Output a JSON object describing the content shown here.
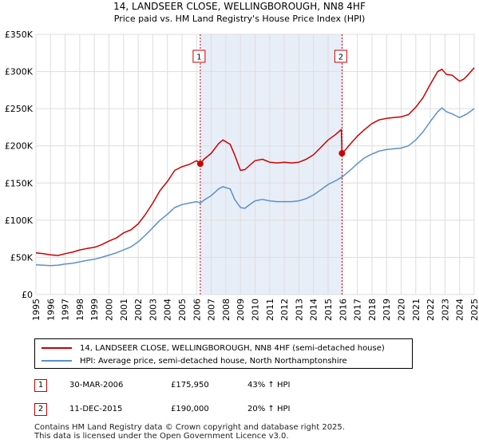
{
  "chart_data": {
    "type": "line",
    "title": "14, LANDSEER CLOSE, WELLINGBOROUGH, NN8 4HF",
    "subtitle": "Price paid vs. HM Land Registry's House Price Index (HPI)",
    "xlabel": "",
    "ylabel": "",
    "xlim": [
      1995,
      2025
    ],
    "ylim": [
      0,
      350000
    ],
    "grid": true,
    "y_ticks": [
      {
        "value": 0,
        "label": "£0"
      },
      {
        "value": 50000,
        "label": "£50K"
      },
      {
        "value": 100000,
        "label": "£100K"
      },
      {
        "value": 150000,
        "label": "£150K"
      },
      {
        "value": 200000,
        "label": "£200K"
      },
      {
        "value": 250000,
        "label": "£250K"
      },
      {
        "value": 300000,
        "label": "£300K"
      },
      {
        "value": 350000,
        "label": "£350K"
      }
    ],
    "x_ticks": [
      "1995",
      "1996",
      "1997",
      "1998",
      "1999",
      "2000",
      "2001",
      "2002",
      "2003",
      "2004",
      "2005",
      "2006",
      "2007",
      "2008",
      "2009",
      "2010",
      "2011",
      "2012",
      "2013",
      "2014",
      "2015",
      "2016",
      "2017",
      "2018",
      "2019",
      "2020",
      "2021",
      "2022",
      "2023",
      "2024",
      "2025"
    ],
    "shaded_region": {
      "from": 2006.25,
      "to": 2015.95
    },
    "series": [
      {
        "name": "14, LANDSEER CLOSE, WELLINGBOROUGH, NN8 4HF (semi-detached house)",
        "color": "#cc0000",
        "points": [
          [
            1995.0,
            56000
          ],
          [
            1995.5,
            55000
          ],
          [
            1996.0,
            53500
          ],
          [
            1996.5,
            52500
          ],
          [
            1997.0,
            55000
          ],
          [
            1997.5,
            57000
          ],
          [
            1998.0,
            60000
          ],
          [
            1998.5,
            62000
          ],
          [
            1999.0,
            63500
          ],
          [
            1999.5,
            67000
          ],
          [
            2000.0,
            72000
          ],
          [
            2000.5,
            76000
          ],
          [
            2001.0,
            83000
          ],
          [
            2001.5,
            87000
          ],
          [
            2002.0,
            95000
          ],
          [
            2002.5,
            108000
          ],
          [
            2003.0,
            123000
          ],
          [
            2003.5,
            140000
          ],
          [
            2004.0,
            152000
          ],
          [
            2004.5,
            167000
          ],
          [
            2005.0,
            172000
          ],
          [
            2005.5,
            175000
          ],
          [
            2006.0,
            180000
          ],
          [
            2006.25,
            175950
          ],
          [
            2006.5,
            182000
          ],
          [
            2007.0,
            190000
          ],
          [
            2007.5,
            203000
          ],
          [
            2007.8,
            208000
          ],
          [
            2008.3,
            202000
          ],
          [
            2008.6,
            188000
          ],
          [
            2009.0,
            167000
          ],
          [
            2009.3,
            168000
          ],
          [
            2009.7,
            175000
          ],
          [
            2010.0,
            180000
          ],
          [
            2010.5,
            182000
          ],
          [
            2011.0,
            178000
          ],
          [
            2011.5,
            177000
          ],
          [
            2012.0,
            178000
          ],
          [
            2012.5,
            177000
          ],
          [
            2013.0,
            178000
          ],
          [
            2013.5,
            182000
          ],
          [
            2014.0,
            188000
          ],
          [
            2014.5,
            198000
          ],
          [
            2015.0,
            208000
          ],
          [
            2015.5,
            215000
          ],
          [
            2015.9,
            222000
          ],
          [
            2015.95,
            190000
          ],
          [
            2016.2,
            195000
          ],
          [
            2016.5,
            202000
          ],
          [
            2017.0,
            213000
          ],
          [
            2017.5,
            222000
          ],
          [
            2018.0,
            230000
          ],
          [
            2018.5,
            235000
          ],
          [
            2019.0,
            237000
          ],
          [
            2019.5,
            238000
          ],
          [
            2020.0,
            239000
          ],
          [
            2020.5,
            242000
          ],
          [
            2021.0,
            252000
          ],
          [
            2021.5,
            265000
          ],
          [
            2022.0,
            283000
          ],
          [
            2022.5,
            300000
          ],
          [
            2022.8,
            303000
          ],
          [
            2023.1,
            296000
          ],
          [
            2023.5,
            295000
          ],
          [
            2023.8,
            290000
          ],
          [
            2024.0,
            287000
          ],
          [
            2024.3,
            290000
          ],
          [
            2024.6,
            296000
          ],
          [
            2025.0,
            305000
          ]
        ]
      },
      {
        "name": "HPI: Average price, semi-detached house, North Northamptonshire",
        "color": "#5b8fcf",
        "points": [
          [
            1995.0,
            40000
          ],
          [
            1995.5,
            39500
          ],
          [
            1996.0,
            39000
          ],
          [
            1996.5,
            39500
          ],
          [
            1997.0,
            41000
          ],
          [
            1997.5,
            42000
          ],
          [
            1998.0,
            44000
          ],
          [
            1998.5,
            46000
          ],
          [
            1999.0,
            47500
          ],
          [
            1999.5,
            50000
          ],
          [
            2000.0,
            53000
          ],
          [
            2000.5,
            56000
          ],
          [
            2001.0,
            60000
          ],
          [
            2001.5,
            64000
          ],
          [
            2002.0,
            71000
          ],
          [
            2002.5,
            80000
          ],
          [
            2003.0,
            90000
          ],
          [
            2003.5,
            100000
          ],
          [
            2004.0,
            108000
          ],
          [
            2004.5,
            117000
          ],
          [
            2005.0,
            121000
          ],
          [
            2005.5,
            123000
          ],
          [
            2006.0,
            125000
          ],
          [
            2006.25,
            123000
          ],
          [
            2006.5,
            127000
          ],
          [
            2007.0,
            133000
          ],
          [
            2007.5,
            142000
          ],
          [
            2007.8,
            145000
          ],
          [
            2008.3,
            142000
          ],
          [
            2008.6,
            128000
          ],
          [
            2009.0,
            117000
          ],
          [
            2009.3,
            116000
          ],
          [
            2009.7,
            122000
          ],
          [
            2010.0,
            126000
          ],
          [
            2010.5,
            128000
          ],
          [
            2011.0,
            126000
          ],
          [
            2011.5,
            125000
          ],
          [
            2012.0,
            125000
          ],
          [
            2012.5,
            125000
          ],
          [
            2013.0,
            126000
          ],
          [
            2013.5,
            129000
          ],
          [
            2014.0,
            134000
          ],
          [
            2014.5,
            141000
          ],
          [
            2015.0,
            148000
          ],
          [
            2015.5,
            153000
          ],
          [
            2015.95,
            158000
          ],
          [
            2016.5,
            167000
          ],
          [
            2017.0,
            176000
          ],
          [
            2017.5,
            184000
          ],
          [
            2018.0,
            189000
          ],
          [
            2018.5,
            193000
          ],
          [
            2019.0,
            195000
          ],
          [
            2019.5,
            196000
          ],
          [
            2020.0,
            197000
          ],
          [
            2020.5,
            200000
          ],
          [
            2021.0,
            208000
          ],
          [
            2021.5,
            219000
          ],
          [
            2022.0,
            233000
          ],
          [
            2022.5,
            246000
          ],
          [
            2022.8,
            251000
          ],
          [
            2023.1,
            246000
          ],
          [
            2023.5,
            243000
          ],
          [
            2023.8,
            240000
          ],
          [
            2024.0,
            238000
          ],
          [
            2024.5,
            243000
          ],
          [
            2025.0,
            250000
          ]
        ]
      }
    ],
    "markers": [
      {
        "label": "1",
        "x": 2006.25,
        "y": 175950
      },
      {
        "label": "2",
        "x": 2015.95,
        "y": 190000
      }
    ]
  },
  "legend": {
    "entries": [
      {
        "label": "14, LANDSEER CLOSE, WELLINGBOROUGH, NN8 4HF (semi-detached house)",
        "color": "#cc0000"
      },
      {
        "label": "HPI: Average price, semi-detached house, North Northamptonshire",
        "color": "#5b8fcf"
      }
    ]
  },
  "transactions": [
    {
      "num": "1",
      "date": "30-MAR-2006",
      "price": "£175,950",
      "hpi": "43% ↑ HPI"
    },
    {
      "num": "2",
      "date": "11-DEC-2015",
      "price": "£190,000",
      "hpi": "20% ↑ HPI"
    }
  ],
  "footer": {
    "line1": "Contains HM Land Registry data © Crown copyright and database right 2025.",
    "line2": "This data is licensed under the Open Government Licence v3.0."
  }
}
